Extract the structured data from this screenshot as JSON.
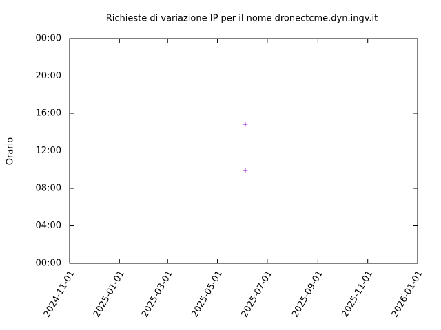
{
  "chart_data": {
    "type": "scatter",
    "title": "Richieste di variazione IP per il nome dronectcme.dyn.ingv.it",
    "y_label": "Orario",
    "x": [
      "2025-06-04",
      "2025-06-04"
    ],
    "values": [
      14.83,
      9.91
    ],
    "color": "#9400d3",
    "marker": "+",
    "xlim": [
      "2024-11-01",
      "2026-01-01"
    ],
    "xticks": [
      "2024-11-01",
      "2025-01-01",
      "2025-03-01",
      "2025-05-01",
      "2025-07-01",
      "2025-09-01",
      "2025-11-01",
      "2026-01-01"
    ],
    "ylim": [
      0,
      24
    ],
    "yticks": [
      {
        "value": 0,
        "label": "00:00"
      },
      {
        "value": 4,
        "label": "04:00"
      },
      {
        "value": 8,
        "label": "08:00"
      },
      {
        "value": 12,
        "label": "12:00"
      },
      {
        "value": 16,
        "label": "16:00"
      },
      {
        "value": 20,
        "label": "20:00"
      },
      {
        "value": 24,
        "label": "00:00"
      }
    ],
    "grid": false
  }
}
